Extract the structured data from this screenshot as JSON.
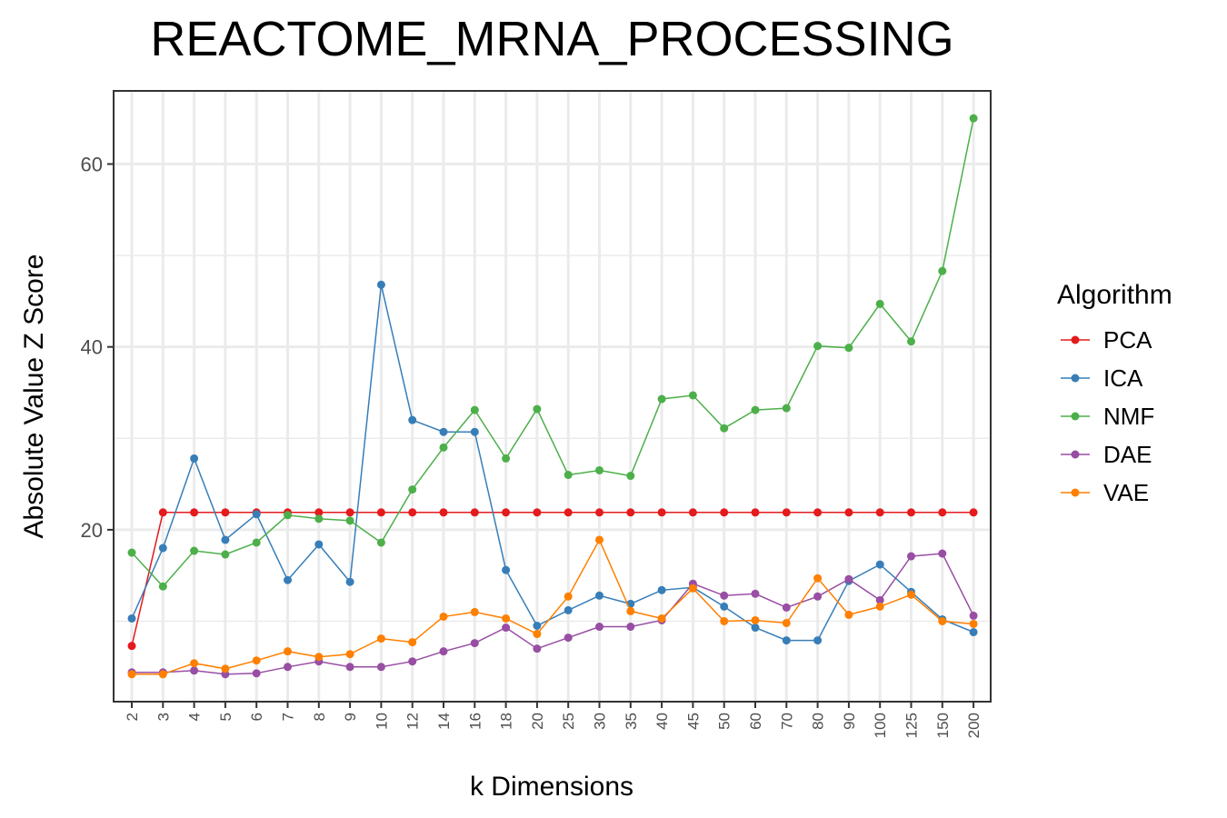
{
  "chart_data": {
    "type": "line",
    "title": "REACTOME_MRNA_PROCESSING",
    "xlabel": "k Dimensions",
    "ylabel": "Absolute Value Z Score",
    "categories": [
      "2",
      "3",
      "4",
      "5",
      "6",
      "7",
      "8",
      "9",
      "10",
      "12",
      "14",
      "16",
      "18",
      "20",
      "25",
      "30",
      "35",
      "40",
      "45",
      "50",
      "60",
      "70",
      "80",
      "90",
      "100",
      "125",
      "150",
      "200"
    ],
    "ylim": [
      1.2,
      68
    ],
    "yticks": [
      20,
      40,
      60
    ],
    "grid": true,
    "legend": {
      "title": "Algorithm",
      "position": "right"
    },
    "series": [
      {
        "name": "PCA",
        "color": "#e41a1c",
        "values": [
          7.3,
          21.9,
          21.9,
          21.9,
          21.9,
          21.9,
          21.9,
          21.9,
          21.9,
          21.9,
          21.9,
          21.9,
          21.9,
          21.9,
          21.9,
          21.9,
          21.9,
          21.9,
          21.9,
          21.9,
          21.9,
          21.9,
          21.9,
          21.9,
          21.9,
          21.9,
          21.9,
          21.9
        ]
      },
      {
        "name": "ICA",
        "color": "#377eb8",
        "values": [
          10.3,
          18.0,
          27.8,
          18.9,
          21.7,
          14.5,
          18.4,
          14.3,
          46.8,
          32.0,
          30.7,
          30.7,
          15.6,
          9.5,
          11.2,
          12.8,
          11.9,
          13.4,
          13.7,
          11.6,
          9.3,
          7.9,
          7.9,
          14.4,
          16.2,
          13.2,
          10.2,
          8.8
        ]
      },
      {
        "name": "NMF",
        "color": "#4daf4a",
        "values": [
          17.5,
          13.8,
          17.7,
          17.3,
          18.6,
          21.6,
          21.2,
          21.0,
          18.6,
          24.4,
          29.0,
          33.1,
          27.8,
          33.2,
          26.0,
          26.5,
          25.9,
          34.3,
          34.7,
          31.1,
          33.1,
          33.3,
          40.1,
          39.9,
          44.7,
          40.6,
          48.3,
          65.0
        ]
      },
      {
        "name": "DAE",
        "color": "#984ea3",
        "values": [
          4.4,
          4.4,
          4.6,
          4.2,
          4.3,
          5.0,
          5.6,
          5.0,
          5.0,
          5.6,
          6.7,
          7.6,
          9.3,
          7.0,
          8.2,
          9.4,
          9.4,
          10.1,
          14.1,
          12.8,
          13.0,
          11.5,
          12.7,
          14.6,
          12.3,
          17.1,
          17.4,
          10.6
        ]
      },
      {
        "name": "VAE",
        "color": "#ff7f00",
        "values": [
          4.2,
          4.2,
          5.4,
          4.8,
          5.7,
          6.7,
          6.1,
          6.4,
          8.1,
          7.7,
          10.5,
          11.0,
          10.3,
          8.6,
          12.7,
          18.9,
          11.1,
          10.3,
          13.6,
          10.0,
          10.1,
          9.8,
          14.7,
          10.7,
          11.6,
          12.9,
          10.0,
          9.7
        ]
      }
    ]
  }
}
